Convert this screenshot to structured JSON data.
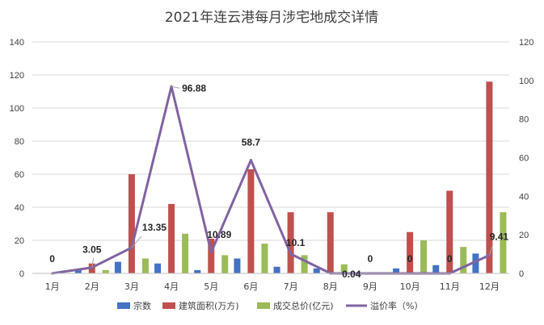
{
  "chart_data": {
    "type": "bar",
    "title": "2021年连云港每月涉宅地成交详情",
    "categories": [
      "1月",
      "2月",
      "3月",
      "4月",
      "5月",
      "6月",
      "7月",
      "8月",
      "9月",
      "10月",
      "11月",
      "12月"
    ],
    "y_left": {
      "lim": [
        0,
        140
      ],
      "ticks": [
        0,
        20,
        40,
        60,
        80,
        100,
        120,
        140
      ]
    },
    "y_right": {
      "lim": [
        0,
        120
      ],
      "ticks": [
        0,
        20,
        40,
        60,
        80,
        100,
        120
      ]
    },
    "series": [
      {
        "name": "宗数",
        "type": "bar",
        "axis": "left",
        "color": "#4472C4",
        "values": [
          0,
          2,
          7,
          6,
          2,
          9,
          4,
          3,
          0,
          3,
          5,
          12
        ]
      },
      {
        "name": "建筑面积(万方)",
        "type": "bar",
        "axis": "left",
        "color": "#C0504D",
        "values": [
          0,
          6,
          60,
          42,
          21,
          63,
          37,
          37,
          0,
          25,
          50,
          116
        ]
      },
      {
        "name": "成交总价(亿元)",
        "type": "bar",
        "axis": "left",
        "color": "#9BBB59",
        "values": [
          0,
          2,
          9,
          24,
          11,
          18,
          11,
          5.5,
          0,
          20,
          16,
          37
        ]
      },
      {
        "name": "溢价率（%）",
        "type": "line",
        "axis": "right",
        "color": "#8064A2",
        "values": [
          0,
          3.05,
          13.35,
          96.88,
          10.89,
          58.7,
          10.1,
          0.04,
          0,
          0,
          0,
          9.41
        ],
        "labels": [
          "0",
          "3.05",
          "13.35",
          "96.88",
          "10.89",
          "58.7",
          "10.1",
          "0.04",
          "0",
          "0",
          "0",
          "9.41"
        ]
      }
    ],
    "legend": "bottom",
    "grid": true
  }
}
